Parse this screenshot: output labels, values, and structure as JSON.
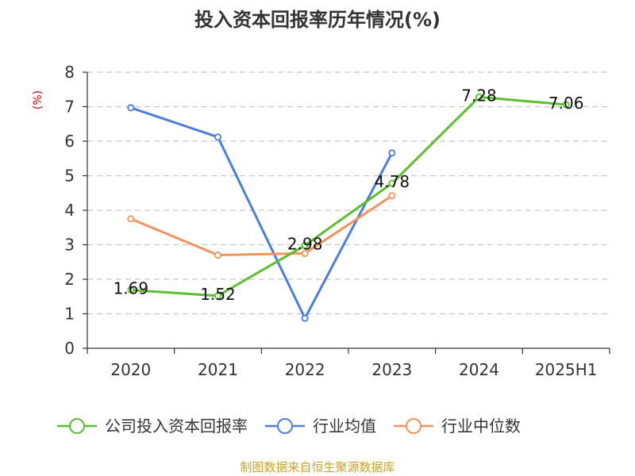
{
  "chart_data": {
    "type": "line",
    "title": "投入资本回报率历年情况(%)",
    "ylabel": "(%)",
    "xlabel": "",
    "categories": [
      "2020",
      "2021",
      "2022",
      "2023",
      "2024",
      "2025H1"
    ],
    "ylim": [
      0,
      8
    ],
    "yticks": [
      0,
      1,
      2,
      3,
      4,
      5,
      6,
      7,
      8
    ],
    "grid": true,
    "legend_position": "bottom",
    "series": [
      {
        "name": "公司投入资本回报率",
        "color": "#5ac02c",
        "values": [
          1.69,
          1.52,
          2.98,
          4.78,
          7.28,
          7.06
        ],
        "labels": [
          "1.69",
          "1.52",
          "2.98",
          "4.78",
          "7.28",
          "7.06"
        ]
      },
      {
        "name": "行业均值",
        "color": "#4a7fdc",
        "values": [
          6.97,
          6.12,
          0.87,
          5.66,
          null,
          null
        ]
      },
      {
        "name": "行业中位数",
        "color": "#f5925c",
        "values": [
          3.75,
          2.7,
          2.75,
          4.42,
          null,
          null
        ]
      }
    ],
    "source": "制图数据来自恒生聚源数据库"
  }
}
